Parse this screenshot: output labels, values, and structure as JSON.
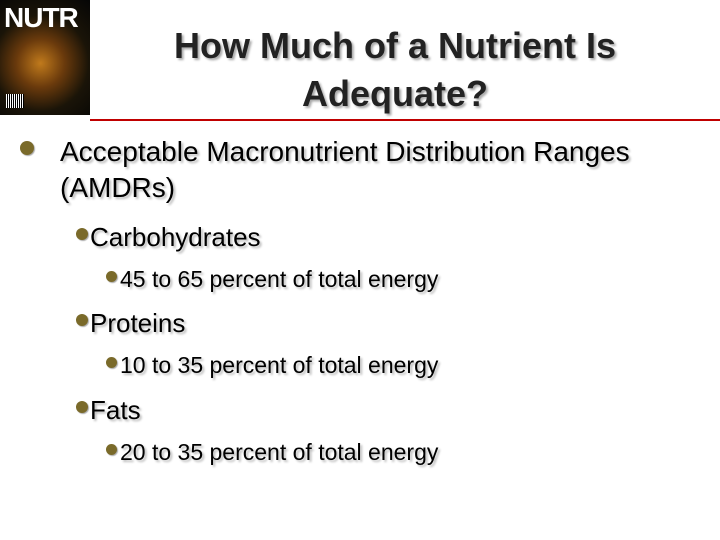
{
  "header": {
    "cover_text": "NUTR",
    "title": "How Much of a Nutrient Is Adequate?"
  },
  "list": {
    "items": [
      {
        "text": "Acceptable Macronutrient Distribution Ranges (AMDRs)",
        "children": [
          {
            "text": "Carbohydrates",
            "children": [
              {
                "text": "45 to 65 percent of total energy"
              }
            ]
          },
          {
            "text": "Proteins",
            "children": [
              {
                "text": "10 to 35 percent of total energy"
              }
            ]
          },
          {
            "text": "Fats",
            "children": [
              {
                "text": "20 to 35 percent of total energy"
              }
            ]
          }
        ]
      }
    ]
  }
}
